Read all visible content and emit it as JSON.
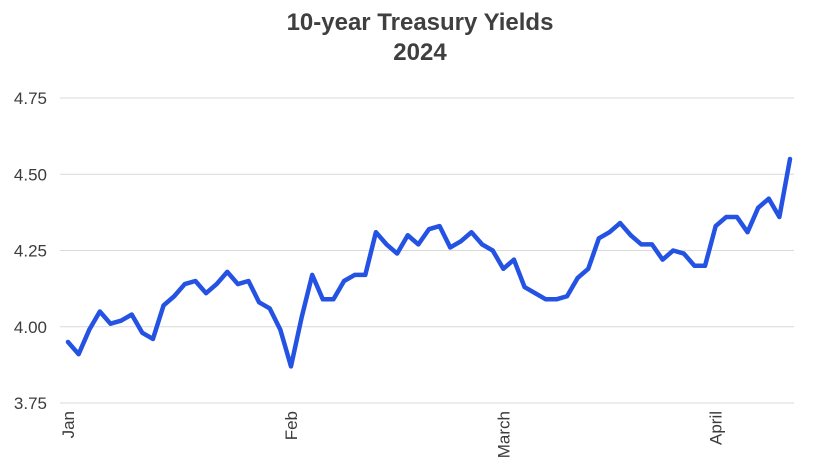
{
  "chart_data": {
    "type": "line",
    "title": "10-year Treasury Yields",
    "subtitle": "2024",
    "xlabel": "",
    "ylabel": "",
    "ylim": [
      3.75,
      4.75
    ],
    "yticks": [
      3.75,
      4.0,
      4.25,
      4.5,
      4.75
    ],
    "ytick_labels": [
      "3.75",
      "4.00",
      "4.25",
      "4.50",
      "4.75"
    ],
    "x_month_labels": [
      {
        "label": "Jan",
        "index": 0
      },
      {
        "label": "Feb",
        "index": 21
      },
      {
        "label": "March",
        "index": 41
      },
      {
        "label": "April",
        "index": 61
      }
    ],
    "grid": true,
    "line_color": "#2453e3",
    "series": [
      {
        "values": [
          3.95,
          3.91,
          3.99,
          4.05,
          4.01,
          4.02,
          4.04,
          3.98,
          3.96,
          4.07,
          4.1,
          4.14,
          4.15,
          4.11,
          4.14,
          4.18,
          4.14,
          4.15,
          4.08,
          4.06,
          3.99,
          3.87,
          4.03,
          4.17,
          4.09,
          4.09,
          4.15,
          4.17,
          4.17,
          4.31,
          4.27,
          4.24,
          4.3,
          4.27,
          4.32,
          4.33,
          4.26,
          4.28,
          4.31,
          4.27,
          4.25,
          4.19,
          4.22,
          4.13,
          4.11,
          4.09,
          4.09,
          4.1,
          4.16,
          4.19,
          4.29,
          4.31,
          4.34,
          4.3,
          4.27,
          4.27,
          4.22,
          4.25,
          4.24,
          4.2,
          4.2,
          4.33,
          4.36,
          4.36,
          4.31,
          4.39,
          4.42,
          4.36,
          4.55
        ]
      }
    ]
  }
}
